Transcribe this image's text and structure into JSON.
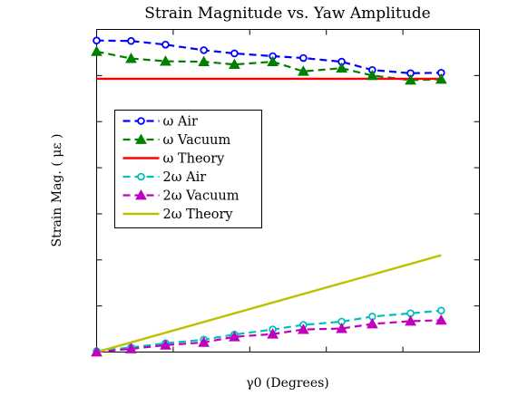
{
  "chart_data": {
    "type": "line",
    "title": "Strain Magnitude vs. Yaw Amplitude",
    "xlabel": "γ0 (Degrees)",
    "ylabel": "Strain Mag. ( με )",
    "xlim": [
      0,
      50
    ],
    "ylim": [
      0,
      7
    ],
    "tick_labels_shown": false,
    "grid": false,
    "legend_position": "center-left",
    "series": [
      {
        "name": "ω Air",
        "style": "dashed",
        "color": "#0000ff",
        "marker": "circle-open",
        "x": [
          0,
          4.5,
          9,
          14,
          18,
          23,
          27,
          32,
          36,
          41,
          45
        ],
        "y": [
          6.76,
          6.75,
          6.67,
          6.55,
          6.48,
          6.42,
          6.38,
          6.3,
          6.12,
          6.05,
          6.06
        ]
      },
      {
        "name": "ω Vacuum",
        "style": "dashed",
        "color": "#008000",
        "marker": "triangle",
        "x": [
          0,
          4.5,
          9,
          14,
          18,
          23,
          27,
          32,
          36,
          41,
          45
        ],
        "y": [
          6.52,
          6.37,
          6.31,
          6.3,
          6.24,
          6.3,
          6.09,
          6.16,
          6.0,
          5.9,
          5.92
        ]
      },
      {
        "name": "ω Theory",
        "style": "solid",
        "color": "#ff0000",
        "marker": "none",
        "x": [
          0,
          45
        ],
        "y": [
          5.93,
          5.93
        ]
      },
      {
        "name": "2ω Air",
        "style": "dashed",
        "color": "#00bfbf",
        "marker": "circle-open",
        "x": [
          0,
          4.5,
          9,
          14,
          18,
          23,
          27,
          32,
          36,
          41,
          45
        ],
        "y": [
          0.02,
          0.1,
          0.19,
          0.27,
          0.38,
          0.49,
          0.59,
          0.66,
          0.77,
          0.84,
          0.9
        ]
      },
      {
        "name": "2ω Vacuum",
        "style": "dashed",
        "color": "#bf00bf",
        "marker": "triangle",
        "x": [
          0,
          4.5,
          9,
          14,
          18,
          23,
          27,
          32,
          36,
          41,
          45
        ],
        "y": [
          0.0,
          0.07,
          0.15,
          0.21,
          0.33,
          0.39,
          0.49,
          0.51,
          0.61,
          0.67,
          0.69
        ]
      },
      {
        "name": "2ω Theory",
        "style": "solid",
        "color": "#bfbf00",
        "marker": "none",
        "x": [
          0,
          45
        ],
        "y": [
          0.0,
          2.1
        ]
      }
    ]
  }
}
